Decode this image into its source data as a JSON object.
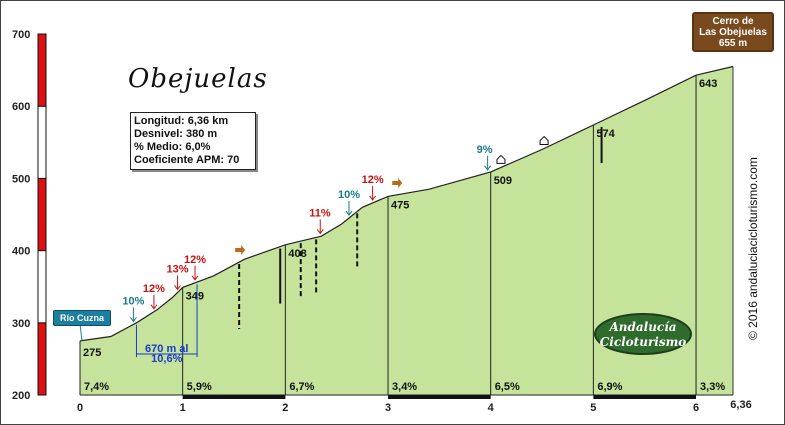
{
  "chart_data": {
    "type": "area",
    "title": "Obejuelas",
    "stats": {
      "length": "Longitud: 6,36 km",
      "climb": "Desnivel: 380 m",
      "avg_grade": "% Medio: 6,0%",
      "coef": "Coeficiente APM: 70"
    },
    "summit": [
      "Cerro de",
      "Las Obejuelas",
      "655 m"
    ],
    "start_label": "Río Cuzna",
    "credit": "© 2016 andaluciacicloturismo.com",
    "logo": [
      "Andalucía",
      "Cicloturismo"
    ],
    "ylim": [
      200,
      700
    ],
    "xlim": [
      0,
      6.36
    ],
    "y_ticks": [
      "200",
      "300",
      "400",
      "500",
      "600",
      "700"
    ],
    "x_ticks": [
      "0",
      "1",
      "2",
      "3",
      "4",
      "5",
      "6"
    ],
    "x_end_label": "6,36",
    "profile": [
      {
        "x": 0.0,
        "y": 275
      },
      {
        "x": 0.3,
        "y": 281
      },
      {
        "x": 0.55,
        "y": 300
      },
      {
        "x": 0.75,
        "y": 318
      },
      {
        "x": 0.9,
        "y": 335
      },
      {
        "x": 1.0,
        "y": 349
      },
      {
        "x": 1.3,
        "y": 365
      },
      {
        "x": 1.6,
        "y": 388
      },
      {
        "x": 2.0,
        "y": 408
      },
      {
        "x": 2.35,
        "y": 420
      },
      {
        "x": 2.55,
        "y": 437
      },
      {
        "x": 2.75,
        "y": 460
      },
      {
        "x": 3.0,
        "y": 475
      },
      {
        "x": 3.4,
        "y": 485
      },
      {
        "x": 4.0,
        "y": 509
      },
      {
        "x": 4.5,
        "y": 540
      },
      {
        "x": 5.0,
        "y": 574
      },
      {
        "x": 5.5,
        "y": 608
      },
      {
        "x": 6.0,
        "y": 643
      },
      {
        "x": 6.36,
        "y": 655
      }
    ],
    "km_markers": [
      {
        "x": 0,
        "alt": "275"
      },
      {
        "x": 1,
        "alt": "349"
      },
      {
        "x": 2,
        "alt": "408"
      },
      {
        "x": 3,
        "alt": "475"
      },
      {
        "x": 4,
        "alt": "509"
      },
      {
        "x": 5,
        "alt": "574"
      },
      {
        "x": 6,
        "alt": "643"
      }
    ],
    "segment_grades": [
      "7,4%",
      "5,9%",
      "6,7%",
      "3,4%",
      "6,5%",
      "6,9%",
      "3,3%"
    ],
    "ramps": [
      {
        "x": 0.52,
        "label": "10%",
        "color": "#1a7a8c"
      },
      {
        "x": 0.72,
        "label": "12%",
        "color": "#cc1111"
      },
      {
        "x": 0.95,
        "label": "13%",
        "color": "#cc1111"
      },
      {
        "x": 1.12,
        "label": "12%",
        "color": "#cc1111"
      },
      {
        "x": 2.34,
        "label": "11%",
        "color": "#cc1111"
      },
      {
        "x": 2.62,
        "label": "10%",
        "color": "#1a7a8c"
      },
      {
        "x": 2.85,
        "label": "12%",
        "color": "#cc1111"
      },
      {
        "x": 3.97,
        "label": "9%",
        "color": "#1a7a8c"
      }
    ],
    "bracket": {
      "text1": "670 m al",
      "text2": "10,6%"
    },
    "colors": {
      "fill": "#c6e39c",
      "line": "#222222",
      "left_bar_red": "#dd1111",
      "left_bar_white": "#ffffff",
      "tag": "#1c7fa0",
      "summit": "#7a4a1f"
    }
  }
}
